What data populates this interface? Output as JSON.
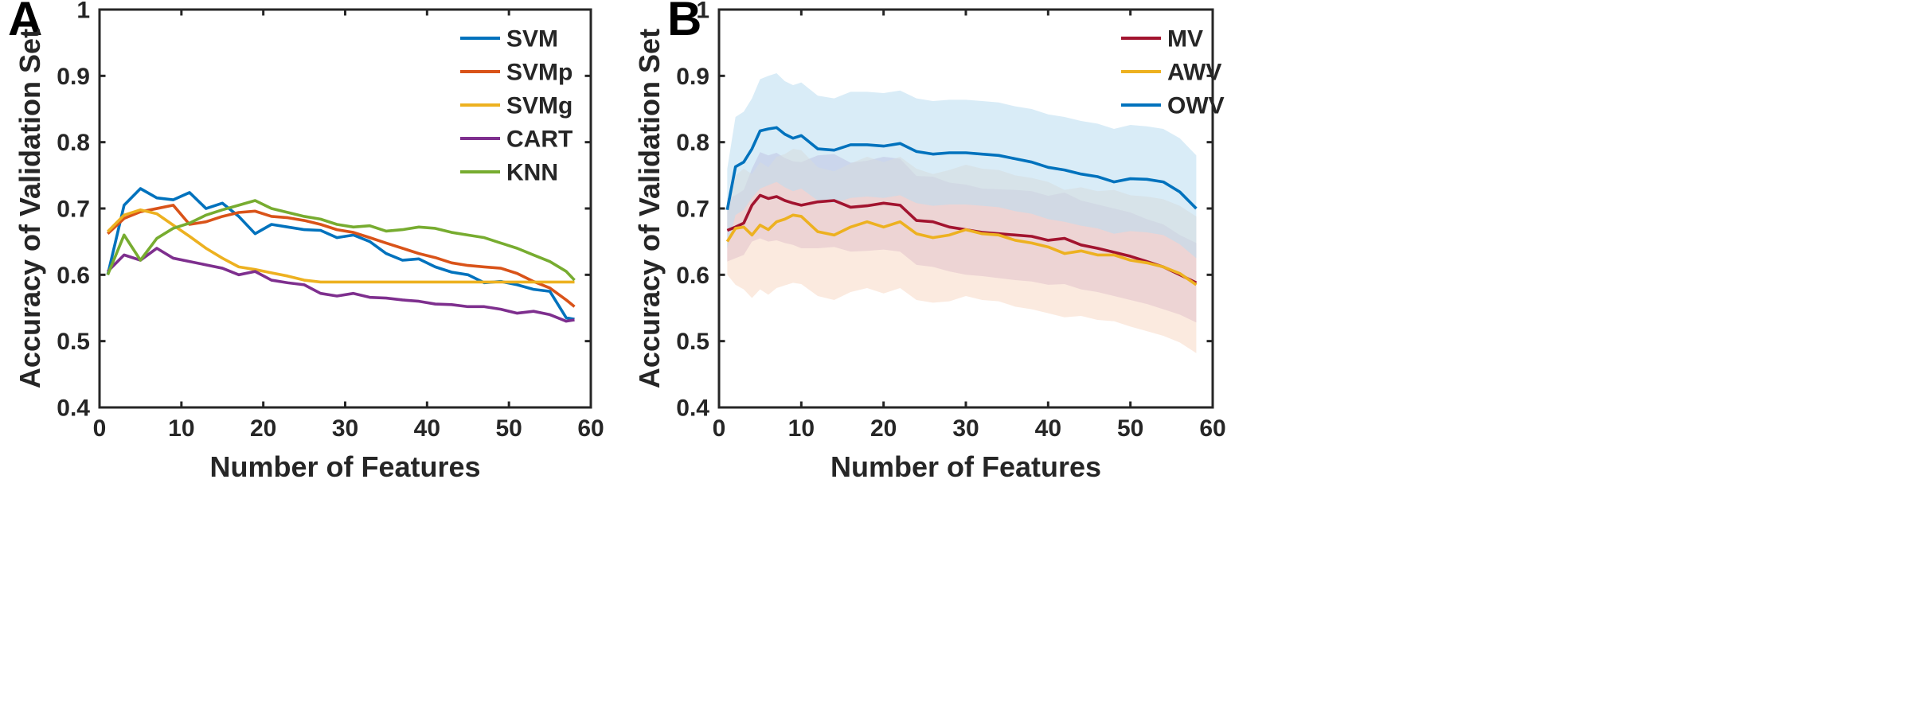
{
  "chart_data": [
    {
      "panel": "A",
      "type": "line",
      "xlabel": "Number of Features",
      "ylabel": "Accuracy of Validation Set",
      "xlim": [
        0,
        60
      ],
      "ylim": [
        0.4,
        1
      ],
      "xticks": [
        0,
        10,
        20,
        30,
        40,
        50,
        60
      ],
      "yticks": [
        0.4,
        0.5,
        0.6,
        0.7,
        0.8,
        0.9,
        1
      ],
      "legend_position": "top-right",
      "x": [
        1,
        3,
        5,
        7,
        9,
        11,
        13,
        15,
        17,
        19,
        21,
        23,
        25,
        27,
        29,
        31,
        33,
        35,
        37,
        39,
        41,
        43,
        45,
        47,
        49,
        51,
        53,
        55,
        57,
        58
      ],
      "series": [
        {
          "name": "SVM",
          "color": "#0072BD",
          "values": [
            0.6,
            0.705,
            0.73,
            0.716,
            0.713,
            0.724,
            0.7,
            0.708,
            0.688,
            0.662,
            0.676,
            0.672,
            0.668,
            0.667,
            0.656,
            0.66,
            0.65,
            0.632,
            0.622,
            0.624,
            0.612,
            0.604,
            0.6,
            0.588,
            0.59,
            0.585,
            0.578,
            0.575,
            0.535,
            0.533
          ]
        },
        {
          "name": "SVMp",
          "color": "#D95319",
          "values": [
            0.662,
            0.685,
            0.695,
            0.7,
            0.705,
            0.676,
            0.68,
            0.688,
            0.694,
            0.696,
            0.688,
            0.686,
            0.682,
            0.676,
            0.668,
            0.664,
            0.656,
            0.648,
            0.64,
            0.632,
            0.626,
            0.618,
            0.614,
            0.612,
            0.61,
            0.602,
            0.59,
            0.58,
            0.562,
            0.552
          ]
        },
        {
          "name": "SVMg",
          "color": "#EDB120",
          "values": [
            0.665,
            0.69,
            0.698,
            0.692,
            0.675,
            0.658,
            0.64,
            0.625,
            0.612,
            0.608,
            0.603,
            0.598,
            0.592,
            0.589,
            0.589,
            0.589,
            0.589,
            0.589,
            0.589,
            0.589,
            0.589,
            0.589,
            0.589,
            0.589,
            0.589,
            0.589,
            0.589,
            0.589,
            0.589,
            0.589
          ]
        },
        {
          "name": "CART",
          "color": "#7E2F8E",
          "values": [
            0.605,
            0.63,
            0.622,
            0.64,
            0.625,
            0.62,
            0.615,
            0.61,
            0.6,
            0.605,
            0.592,
            0.588,
            0.585,
            0.572,
            0.568,
            0.572,
            0.566,
            0.565,
            0.562,
            0.56,
            0.556,
            0.555,
            0.552,
            0.552,
            0.548,
            0.542,
            0.545,
            0.54,
            0.53,
            0.532
          ]
        },
        {
          "name": "KNN",
          "color": "#77AC30",
          "values": [
            0.6,
            0.66,
            0.622,
            0.655,
            0.67,
            0.678,
            0.69,
            0.698,
            0.705,
            0.712,
            0.7,
            0.694,
            0.688,
            0.684,
            0.676,
            0.672,
            0.674,
            0.666,
            0.668,
            0.672,
            0.67,
            0.664,
            0.66,
            0.656,
            0.648,
            0.64,
            0.63,
            0.62,
            0.605,
            0.592
          ]
        }
      ]
    },
    {
      "panel": "B",
      "type": "area",
      "xlabel": "Number of Features",
      "ylabel": "Accuracy of Validation Set",
      "xlim": [
        0,
        60
      ],
      "ylim": [
        0.4,
        1
      ],
      "xticks": [
        0,
        10,
        20,
        30,
        40,
        50,
        60
      ],
      "yticks": [
        0.4,
        0.5,
        0.6,
        0.7,
        0.8,
        0.9,
        1
      ],
      "legend_position": "top-right",
      "x": [
        1,
        2,
        3,
        4,
        5,
        6,
        7,
        8,
        9,
        10,
        12,
        14,
        16,
        18,
        20,
        22,
        24,
        26,
        28,
        30,
        32,
        34,
        36,
        38,
        40,
        42,
        44,
        46,
        48,
        50,
        52,
        54,
        56,
        58
      ],
      "series": [
        {
          "name": "MV",
          "color": "#A2142F",
          "band_color": "#C9A8D4",
          "values": [
            0.667,
            0.672,
            0.678,
            0.705,
            0.72,
            0.715,
            0.718,
            0.712,
            0.708,
            0.705,
            0.71,
            0.712,
            0.702,
            0.704,
            0.708,
            0.705,
            0.682,
            0.68,
            0.672,
            0.668,
            0.664,
            0.662,
            0.66,
            0.658,
            0.652,
            0.655,
            0.645,
            0.64,
            0.634,
            0.628,
            0.62,
            0.612,
            0.6,
            0.588
          ],
          "lower": [
            0.62,
            0.625,
            0.63,
            0.65,
            0.655,
            0.65,
            0.652,
            0.648,
            0.645,
            0.64,
            0.64,
            0.642,
            0.635,
            0.636,
            0.638,
            0.635,
            0.615,
            0.612,
            0.605,
            0.6,
            0.598,
            0.595,
            0.592,
            0.59,
            0.585,
            0.586,
            0.578,
            0.574,
            0.568,
            0.562,
            0.556,
            0.548,
            0.54,
            0.528
          ],
          "upper": [
            0.715,
            0.72,
            0.728,
            0.76,
            0.785,
            0.78,
            0.784,
            0.776,
            0.771,
            0.77,
            0.78,
            0.782,
            0.769,
            0.772,
            0.778,
            0.775,
            0.749,
            0.748,
            0.739,
            0.736,
            0.73,
            0.729,
            0.728,
            0.726,
            0.719,
            0.724,
            0.712,
            0.706,
            0.7,
            0.694,
            0.684,
            0.676,
            0.66,
            0.648
          ]
        },
        {
          "name": "AWV",
          "color": "#EDB120",
          "band_color": "#F7D9C4",
          "values": [
            0.65,
            0.67,
            0.672,
            0.66,
            0.675,
            0.668,
            0.68,
            0.684,
            0.69,
            0.688,
            0.665,
            0.66,
            0.672,
            0.68,
            0.672,
            0.68,
            0.662,
            0.656,
            0.66,
            0.668,
            0.662,
            0.66,
            0.652,
            0.648,
            0.642,
            0.632,
            0.636,
            0.63,
            0.63,
            0.622,
            0.618,
            0.612,
            0.602,
            0.585
          ],
          "lower": [
            0.6,
            0.585,
            0.578,
            0.565,
            0.578,
            0.57,
            0.58,
            0.584,
            0.588,
            0.586,
            0.568,
            0.562,
            0.574,
            0.58,
            0.572,
            0.58,
            0.562,
            0.558,
            0.56,
            0.568,
            0.562,
            0.56,
            0.552,
            0.548,
            0.542,
            0.536,
            0.538,
            0.532,
            0.53,
            0.522,
            0.515,
            0.508,
            0.498,
            0.482
          ],
          "upper": [
            0.7,
            0.75,
            0.76,
            0.752,
            0.77,
            0.762,
            0.778,
            0.782,
            0.79,
            0.788,
            0.762,
            0.756,
            0.768,
            0.778,
            0.77,
            0.778,
            0.76,
            0.752,
            0.758,
            0.766,
            0.76,
            0.758,
            0.75,
            0.746,
            0.74,
            0.728,
            0.732,
            0.726,
            0.728,
            0.72,
            0.718,
            0.714,
            0.704,
            0.688
          ]
        },
        {
          "name": "OWV",
          "color": "#0072BD",
          "band_color": "#B9DDF1",
          "values": [
            0.698,
            0.763,
            0.77,
            0.79,
            0.817,
            0.82,
            0.822,
            0.812,
            0.806,
            0.81,
            0.79,
            0.788,
            0.796,
            0.796,
            0.794,
            0.798,
            0.786,
            0.782,
            0.784,
            0.784,
            0.782,
            0.78,
            0.775,
            0.77,
            0.762,
            0.758,
            0.752,
            0.748,
            0.74,
            0.745,
            0.744,
            0.74,
            0.725,
            0.7
          ],
          "lower": [
            0.64,
            0.69,
            0.698,
            0.716,
            0.73,
            0.735,
            0.74,
            0.732,
            0.726,
            0.73,
            0.712,
            0.708,
            0.716,
            0.718,
            0.716,
            0.72,
            0.708,
            0.704,
            0.706,
            0.706,
            0.704,
            0.702,
            0.696,
            0.692,
            0.684,
            0.68,
            0.674,
            0.67,
            0.662,
            0.666,
            0.664,
            0.66,
            0.646,
            0.625
          ],
          "upper": [
            0.76,
            0.838,
            0.846,
            0.866,
            0.895,
            0.9,
            0.904,
            0.892,
            0.886,
            0.89,
            0.87,
            0.866,
            0.876,
            0.876,
            0.874,
            0.878,
            0.866,
            0.862,
            0.864,
            0.864,
            0.862,
            0.86,
            0.854,
            0.85,
            0.842,
            0.838,
            0.832,
            0.828,
            0.82,
            0.826,
            0.824,
            0.82,
            0.806,
            0.78
          ]
        }
      ]
    }
  ]
}
